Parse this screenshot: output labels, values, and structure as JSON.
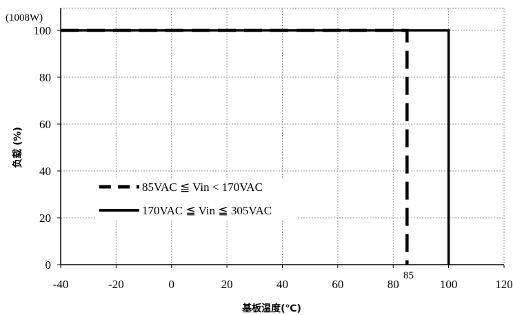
{
  "chart_data": {
    "type": "line",
    "x": [
      -40,
      -20,
      0,
      20,
      40,
      60,
      80,
      100,
      120
    ],
    "xlim": [
      -40,
      120
    ],
    "ylim": [
      0,
      100
    ],
    "x_ticks": [
      -40,
      -20,
      0,
      20,
      40,
      60,
      80,
      100,
      120
    ],
    "y_ticks": [
      0,
      20,
      40,
      60,
      80,
      100
    ],
    "x_tick_labels": [
      "-40",
      "-20",
      "0",
      "20",
      "40",
      "60",
      "80",
      "100",
      "120"
    ],
    "y_tick_labels": [
      "0",
      "20",
      "40",
      "60",
      "80",
      "100"
    ],
    "xlabel": "基板温度(℃)",
    "ylabel": "负载 (%)",
    "y_unit_label": "(1008W)",
    "grid": true,
    "legend_position": "lower-left",
    "series": [
      {
        "name": "85VAC ≦ Vin < 170VAC",
        "style": "dashed",
        "color": "#000000",
        "points": [
          [
            -40,
            100
          ],
          [
            85,
            100
          ],
          [
            85,
            0
          ]
        ]
      },
      {
        "name": "170VAC ≦ Vin ≦ 305VAC",
        "style": "solid",
        "color": "#000000",
        "points": [
          [
            -40,
            100
          ],
          [
            100,
            100
          ],
          [
            100,
            0
          ]
        ]
      }
    ],
    "annotations": [
      {
        "text": "85",
        "x": 85
      }
    ]
  }
}
